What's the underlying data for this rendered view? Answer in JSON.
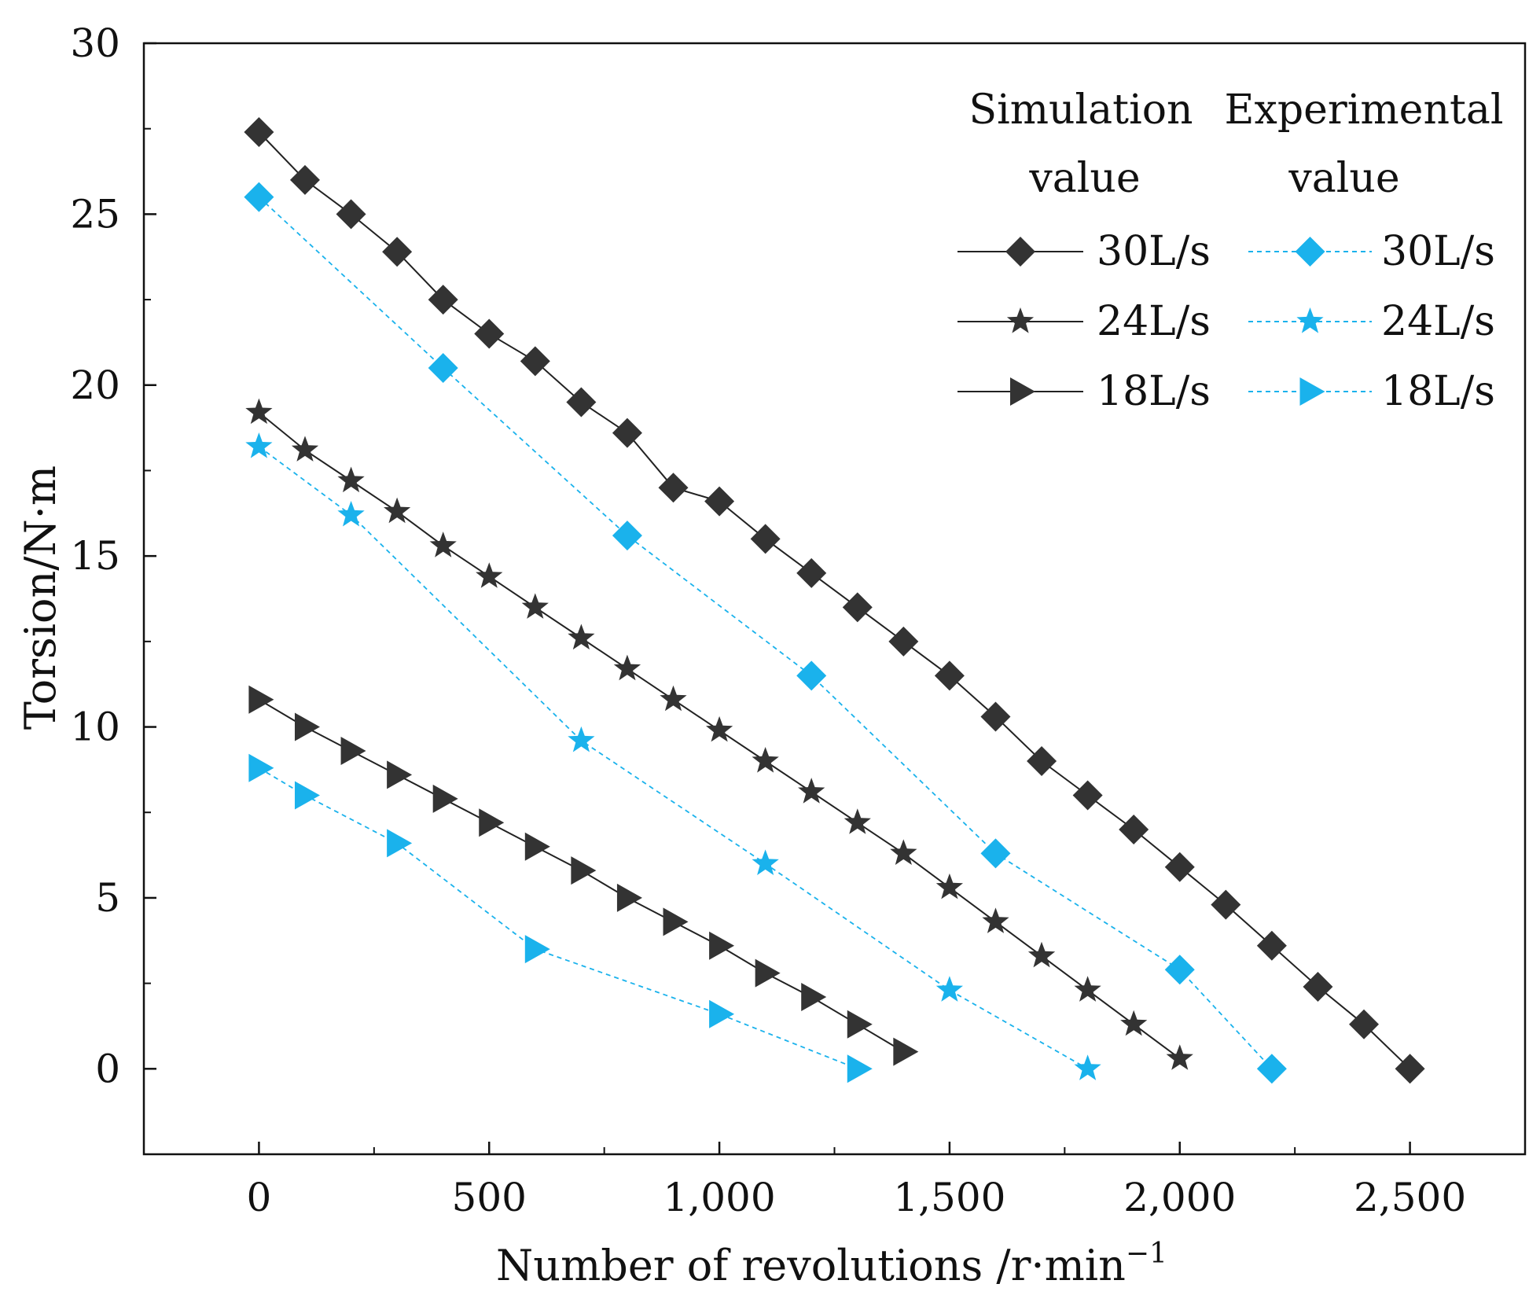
{
  "colors": {
    "simulation": "#333333",
    "experimental": "#1ab2ec",
    "axis": "#111111"
  },
  "chart_data": {
    "type": "line",
    "xlabel": "Number of revolutions /r·min",
    "xlabel_superscript": "−1",
    "ylabel": "Torsion/N·m",
    "xlim": [
      -250,
      2750
    ],
    "ylim": [
      -2.5,
      30
    ],
    "xticks": [
      0,
      500,
      1000,
      1500,
      2000,
      2500
    ],
    "xtick_labels": [
      "0",
      "500",
      "1,000",
      "1,500",
      "2,000",
      "2,500"
    ],
    "yticks": [
      0,
      5,
      10,
      15,
      20,
      25,
      30
    ],
    "ytick_labels": [
      "0",
      "5",
      "10",
      "15",
      "20",
      "25",
      "30"
    ],
    "legend_headers": {
      "simulation": [
        "Simulation",
        "value"
      ],
      "experimental": [
        "Experimental",
        "value"
      ]
    },
    "legend_position": "top-right",
    "series": [
      {
        "name": "30L/s",
        "group": "simulation",
        "marker": "diamond",
        "x": [
          0,
          100,
          200,
          300,
          400,
          500,
          600,
          700,
          800,
          900,
          1000,
          1100,
          1200,
          1300,
          1400,
          1500,
          1600,
          1700,
          1800,
          1900,
          2000,
          2100,
          2200,
          2300,
          2400,
          2500
        ],
        "y": [
          27.4,
          26.0,
          25.0,
          23.9,
          22.5,
          21.5,
          20.7,
          19.5,
          18.6,
          17.0,
          16.6,
          15.5,
          14.5,
          13.5,
          12.5,
          11.5,
          10.3,
          9.0,
          8.0,
          7.0,
          5.9,
          4.8,
          3.6,
          2.4,
          1.3,
          0.0
        ]
      },
      {
        "name": "24L/s",
        "group": "simulation",
        "marker": "star",
        "x": [
          0,
          100,
          200,
          300,
          400,
          500,
          600,
          700,
          800,
          900,
          1000,
          1100,
          1200,
          1300,
          1400,
          1500,
          1600,
          1700,
          1800,
          1900,
          2000
        ],
        "y": [
          19.2,
          18.1,
          17.2,
          16.3,
          15.3,
          14.4,
          13.5,
          12.6,
          11.7,
          10.8,
          9.9,
          9.0,
          8.1,
          7.2,
          6.3,
          5.3,
          4.3,
          3.3,
          2.3,
          1.3,
          0.3
        ]
      },
      {
        "name": "18L/s",
        "group": "simulation",
        "marker": "triangle-right",
        "x": [
          0,
          100,
          200,
          300,
          400,
          500,
          600,
          700,
          800,
          900,
          1000,
          1100,
          1200,
          1300,
          1400
        ],
        "y": [
          10.8,
          10.0,
          9.3,
          8.6,
          7.9,
          7.2,
          6.5,
          5.8,
          5.0,
          4.3,
          3.6,
          2.8,
          2.1,
          1.3,
          0.5
        ]
      },
      {
        "name": "30L/s",
        "group": "experimental",
        "marker": "diamond",
        "x": [
          0,
          400,
          800,
          1200,
          1600,
          2000,
          2200
        ],
        "y": [
          25.5,
          20.5,
          15.6,
          11.5,
          6.3,
          2.9,
          0.0
        ]
      },
      {
        "name": "24L/s",
        "group": "experimental",
        "marker": "star",
        "x": [
          0,
          200,
          700,
          1100,
          1500,
          1800
        ],
        "y": [
          18.2,
          16.2,
          9.6,
          6.0,
          2.3,
          0.0
        ]
      },
      {
        "name": "18L/s",
        "group": "experimental",
        "marker": "triangle-right",
        "x": [
          0,
          100,
          300,
          600,
          1000,
          1300
        ],
        "y": [
          8.8,
          8.0,
          6.6,
          3.5,
          1.6,
          0.0
        ]
      }
    ]
  }
}
